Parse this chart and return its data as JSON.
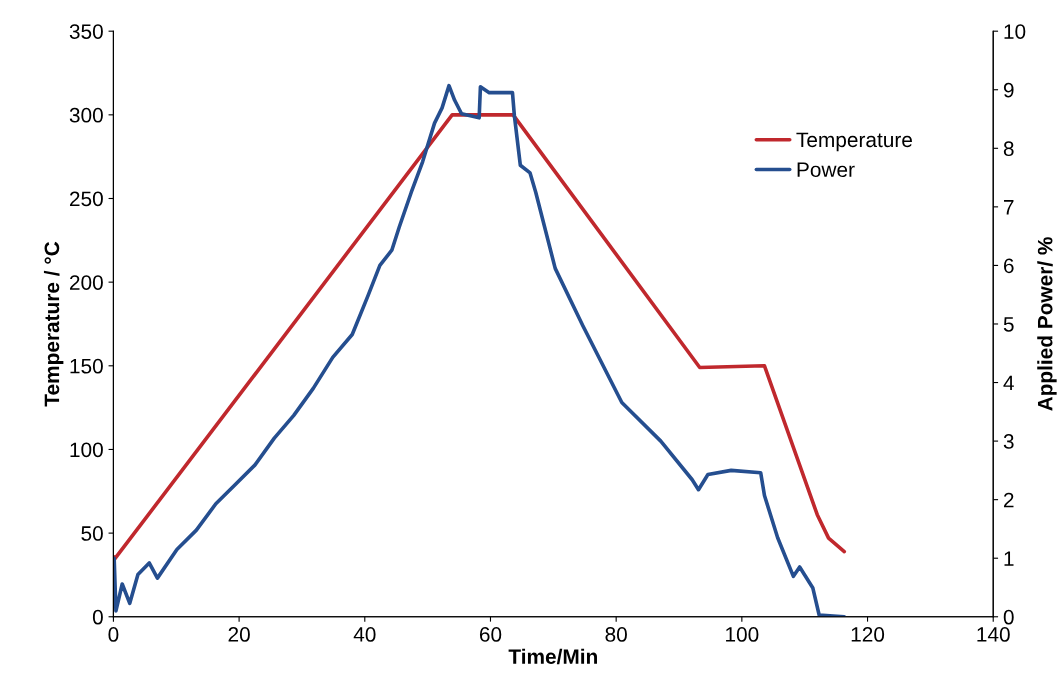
{
  "chart_data": {
    "type": "line",
    "xlabel": "Time/Min",
    "ylabel": "Temperature / °C",
    "y2label": "Applied Power/ %",
    "xlim": [
      0,
      140
    ],
    "xticks": [
      0,
      20,
      40,
      60,
      80,
      100,
      120,
      140
    ],
    "ylim": [
      0,
      350
    ],
    "yticks": [
      0,
      50,
      100,
      150,
      200,
      250,
      300,
      350
    ],
    "y2lim": [
      0,
      10
    ],
    "y2ticks": [
      0,
      1,
      2,
      3,
      4,
      5,
      6,
      7,
      8,
      9,
      10
    ],
    "grid": false,
    "legend": "top right",
    "marker": "none",
    "line_style": "solid",
    "series": [
      {
        "name": "Temperature",
        "color": "#c0282d",
        "x": [
          0,
          0.3,
          53.9,
          63.6,
          93.3,
          103.6,
          112.0,
          113.8,
          116.3
        ],
        "values": [
          36,
          35,
          300,
          300,
          149,
          150,
          61,
          47,
          39
        ]
      },
      {
        "name": "Power",
        "color": "#254e8f",
        "axis": "y2",
        "x": [
          0,
          0.12,
          0.4,
          1.4,
          2.6,
          3.9,
          5.7,
          7.0,
          10.1,
          13.2,
          16.3,
          19.4,
          22.5,
          25.6,
          28.7,
          31.8,
          34.9,
          38.0,
          40.5,
          42.4,
          44.3,
          45.5,
          47.4,
          49.2,
          51.1,
          52.3,
          53.4,
          54.3,
          55.4,
          58.2,
          58.4,
          59.8,
          63.5,
          63.8,
          64.75,
          66.3,
          67.2,
          70.3,
          74.7,
          80.9,
          87.1,
          92.1,
          93.1,
          94.6,
          98.3,
          103.0,
          103.6,
          105.7,
          108.2,
          109.2,
          111.3,
          112.3,
          116.3
        ],
        "values": [
          0.9,
          1.0,
          0.1,
          0.56,
          0.23,
          0.72,
          0.92,
          0.66,
          1.15,
          1.48,
          1.93,
          2.26,
          2.59,
          3.05,
          3.44,
          3.9,
          4.43,
          4.82,
          5.48,
          6.0,
          6.26,
          6.66,
          7.25,
          7.77,
          8.43,
          8.69,
          9.07,
          8.82,
          8.59,
          8.52,
          9.05,
          8.95,
          8.95,
          8.56,
          7.71,
          7.58,
          7.25,
          5.95,
          4.97,
          3.66,
          3.0,
          2.34,
          2.17,
          2.43,
          2.5,
          2.46,
          2.07,
          1.35,
          0.69,
          0.85,
          0.49,
          0.03,
          0.0
        ]
      }
    ]
  }
}
